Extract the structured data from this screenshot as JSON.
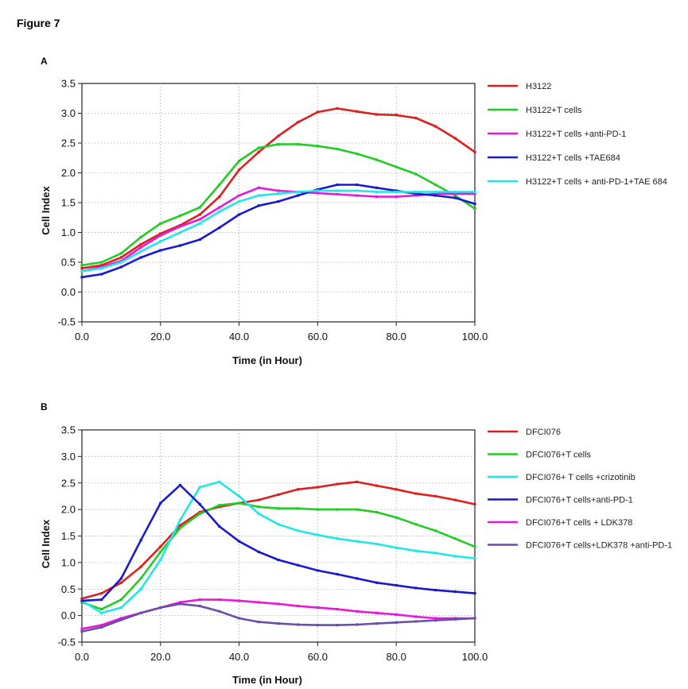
{
  "figure_title": "Figure 7",
  "chart_data": [
    {
      "panel": "A",
      "type": "line",
      "xlabel": "Time (in Hour)",
      "ylabel": "Cell Index",
      "xlim": [
        0,
        100
      ],
      "ylim": [
        -0.5,
        3.5
      ],
      "xticks": [
        "0.0",
        "20.0",
        "40.0",
        "60.0",
        "80.0",
        "100.0"
      ],
      "yticks": [
        "-0.5",
        "0.0",
        "0.5",
        "1.0",
        "1.5",
        "2.0",
        "2.5",
        "3.0",
        "3.5"
      ],
      "grid": true,
      "legend_position": "right",
      "series": [
        {
          "name": "H3122",
          "color": "#dd1f1f",
          "x": [
            0,
            5,
            10,
            15,
            20,
            25,
            30,
            35,
            40,
            45,
            50,
            55,
            60,
            65,
            70,
            75,
            80,
            85,
            90,
            95,
            100
          ],
          "y": [
            0.4,
            0.45,
            0.58,
            0.8,
            0.98,
            1.12,
            1.3,
            1.6,
            2.05,
            2.35,
            2.62,
            2.85,
            3.02,
            3.08,
            3.03,
            2.98,
            2.97,
            2.92,
            2.78,
            2.58,
            2.35
          ]
        },
        {
          "name": "H3122+T cells",
          "color": "#22cc22",
          "x": [
            0,
            5,
            10,
            15,
            20,
            25,
            30,
            35,
            40,
            45,
            50,
            55,
            60,
            65,
            70,
            75,
            80,
            85,
            90,
            95,
            100
          ],
          "y": [
            0.45,
            0.5,
            0.65,
            0.92,
            1.15,
            1.28,
            1.42,
            1.8,
            2.2,
            2.42,
            2.48,
            2.48,
            2.45,
            2.4,
            2.32,
            2.22,
            2.1,
            1.98,
            1.8,
            1.62,
            1.4
          ]
        },
        {
          "name": "H3122+T cells +anti-PD-1",
          "color": "#e619d9",
          "x": [
            0,
            5,
            10,
            15,
            20,
            25,
            30,
            35,
            40,
            45,
            50,
            55,
            60,
            65,
            70,
            75,
            80,
            85,
            90,
            95,
            100
          ],
          "y": [
            0.35,
            0.42,
            0.52,
            0.75,
            0.95,
            1.1,
            1.22,
            1.42,
            1.62,
            1.75,
            1.7,
            1.68,
            1.66,
            1.64,
            1.62,
            1.6,
            1.6,
            1.62,
            1.65,
            1.65,
            1.65
          ]
        },
        {
          "name": "H3122+T cells +TAE684",
          "color": "#1a1acc",
          "x": [
            0,
            5,
            10,
            15,
            20,
            25,
            30,
            35,
            40,
            45,
            50,
            55,
            60,
            65,
            70,
            75,
            80,
            85,
            90,
            95,
            100
          ],
          "y": [
            0.25,
            0.3,
            0.42,
            0.58,
            0.7,
            0.78,
            0.88,
            1.08,
            1.3,
            1.45,
            1.52,
            1.62,
            1.72,
            1.8,
            1.8,
            1.75,
            1.7,
            1.65,
            1.62,
            1.58,
            1.48
          ]
        },
        {
          "name": "H3122+T cells + anti-PD-1+TAE 684",
          "color": "#22e6e6",
          "x": [
            0,
            5,
            10,
            15,
            20,
            25,
            30,
            35,
            40,
            45,
            50,
            55,
            60,
            65,
            70,
            75,
            80,
            85,
            90,
            95,
            100
          ],
          "y": [
            0.35,
            0.4,
            0.5,
            0.68,
            0.85,
            1.0,
            1.15,
            1.35,
            1.52,
            1.62,
            1.65,
            1.68,
            1.7,
            1.7,
            1.7,
            1.68,
            1.68,
            1.68,
            1.68,
            1.68,
            1.68
          ]
        }
      ]
    },
    {
      "panel": "B",
      "type": "line",
      "xlabel": "Time (in Hour)",
      "ylabel": "Cell Index",
      "xlim": [
        0,
        100
      ],
      "ylim": [
        -0.5,
        3.5
      ],
      "xticks": [
        "0.0",
        "20.0",
        "40.0",
        "60.0",
        "80.0",
        "100.0"
      ],
      "yticks": [
        "-0.5",
        "0.0",
        "0.5",
        "1.0",
        "1.5",
        "2.0",
        "2.5",
        "3.0",
        "3.5"
      ],
      "grid": true,
      "legend_position": "right",
      "series": [
        {
          "name": "DFCI076",
          "color": "#dd1f1f",
          "x": [
            0,
            5,
            10,
            15,
            20,
            25,
            30,
            35,
            40,
            45,
            50,
            55,
            60,
            65,
            70,
            75,
            80,
            85,
            90,
            95,
            100
          ],
          "y": [
            0.32,
            0.42,
            0.62,
            0.92,
            1.3,
            1.7,
            1.95,
            2.05,
            2.12,
            2.18,
            2.28,
            2.38,
            2.42,
            2.48,
            2.52,
            2.45,
            2.38,
            2.3,
            2.25,
            2.18,
            2.1
          ]
        },
        {
          "name": "DFCI076+T cells",
          "color": "#22cc22",
          "x": [
            0,
            5,
            10,
            15,
            20,
            25,
            30,
            35,
            40,
            45,
            50,
            55,
            60,
            65,
            70,
            75,
            80,
            85,
            90,
            95,
            100
          ],
          "y": [
            0.25,
            0.12,
            0.3,
            0.7,
            1.2,
            1.65,
            1.92,
            2.08,
            2.12,
            2.05,
            2.02,
            2.02,
            2.0,
            2.0,
            2.0,
            1.95,
            1.85,
            1.72,
            1.6,
            1.45,
            1.3
          ]
        },
        {
          "name": "DFCI076+ T cells +crizotinib",
          "color": "#22e6e6",
          "x": [
            0,
            5,
            10,
            15,
            20,
            25,
            30,
            35,
            40,
            45,
            50,
            55,
            60,
            65,
            70,
            75,
            80,
            85,
            90,
            95,
            100
          ],
          "y": [
            0.28,
            0.05,
            0.15,
            0.5,
            1.05,
            1.8,
            2.42,
            2.52,
            2.25,
            1.92,
            1.72,
            1.6,
            1.52,
            1.45,
            1.4,
            1.35,
            1.28,
            1.22,
            1.18,
            1.12,
            1.08
          ]
        },
        {
          "name": "DFCI076+T cells+anti-PD-1",
          "color": "#1a1acc",
          "x": [
            0,
            5,
            10,
            15,
            20,
            25,
            30,
            35,
            40,
            45,
            50,
            55,
            60,
            65,
            70,
            75,
            80,
            85,
            90,
            95,
            100
          ],
          "y": [
            0.28,
            0.3,
            0.7,
            1.42,
            2.12,
            2.46,
            2.1,
            1.68,
            1.4,
            1.2,
            1.05,
            0.95,
            0.85,
            0.78,
            0.7,
            0.62,
            0.57,
            0.52,
            0.48,
            0.45,
            0.42
          ]
        },
        {
          "name": "DFCI076+T cells + LDK378",
          "color": "#e619d9",
          "x": [
            0,
            5,
            10,
            15,
            20,
            25,
            30,
            35,
            40,
            45,
            50,
            55,
            60,
            65,
            70,
            75,
            80,
            85,
            90,
            95,
            100
          ],
          "y": [
            -0.25,
            -0.18,
            -0.05,
            0.05,
            0.15,
            0.25,
            0.3,
            0.3,
            0.28,
            0.25,
            0.22,
            0.18,
            0.15,
            0.12,
            0.08,
            0.05,
            0.02,
            -0.02,
            -0.05,
            -0.05,
            -0.05
          ]
        },
        {
          "name": "DFCI076+T cells+LDK378 +anti-PD-1",
          "color": "#6a4fa8",
          "x": [
            0,
            5,
            10,
            15,
            20,
            25,
            30,
            35,
            40,
            45,
            50,
            55,
            60,
            65,
            70,
            75,
            80,
            85,
            90,
            95,
            100
          ],
          "y": [
            -0.3,
            -0.22,
            -0.08,
            0.05,
            0.15,
            0.22,
            0.18,
            0.08,
            -0.05,
            -0.12,
            -0.15,
            -0.17,
            -0.18,
            -0.18,
            -0.17,
            -0.15,
            -0.13,
            -0.11,
            -0.09,
            -0.07,
            -0.05
          ]
        }
      ]
    }
  ]
}
